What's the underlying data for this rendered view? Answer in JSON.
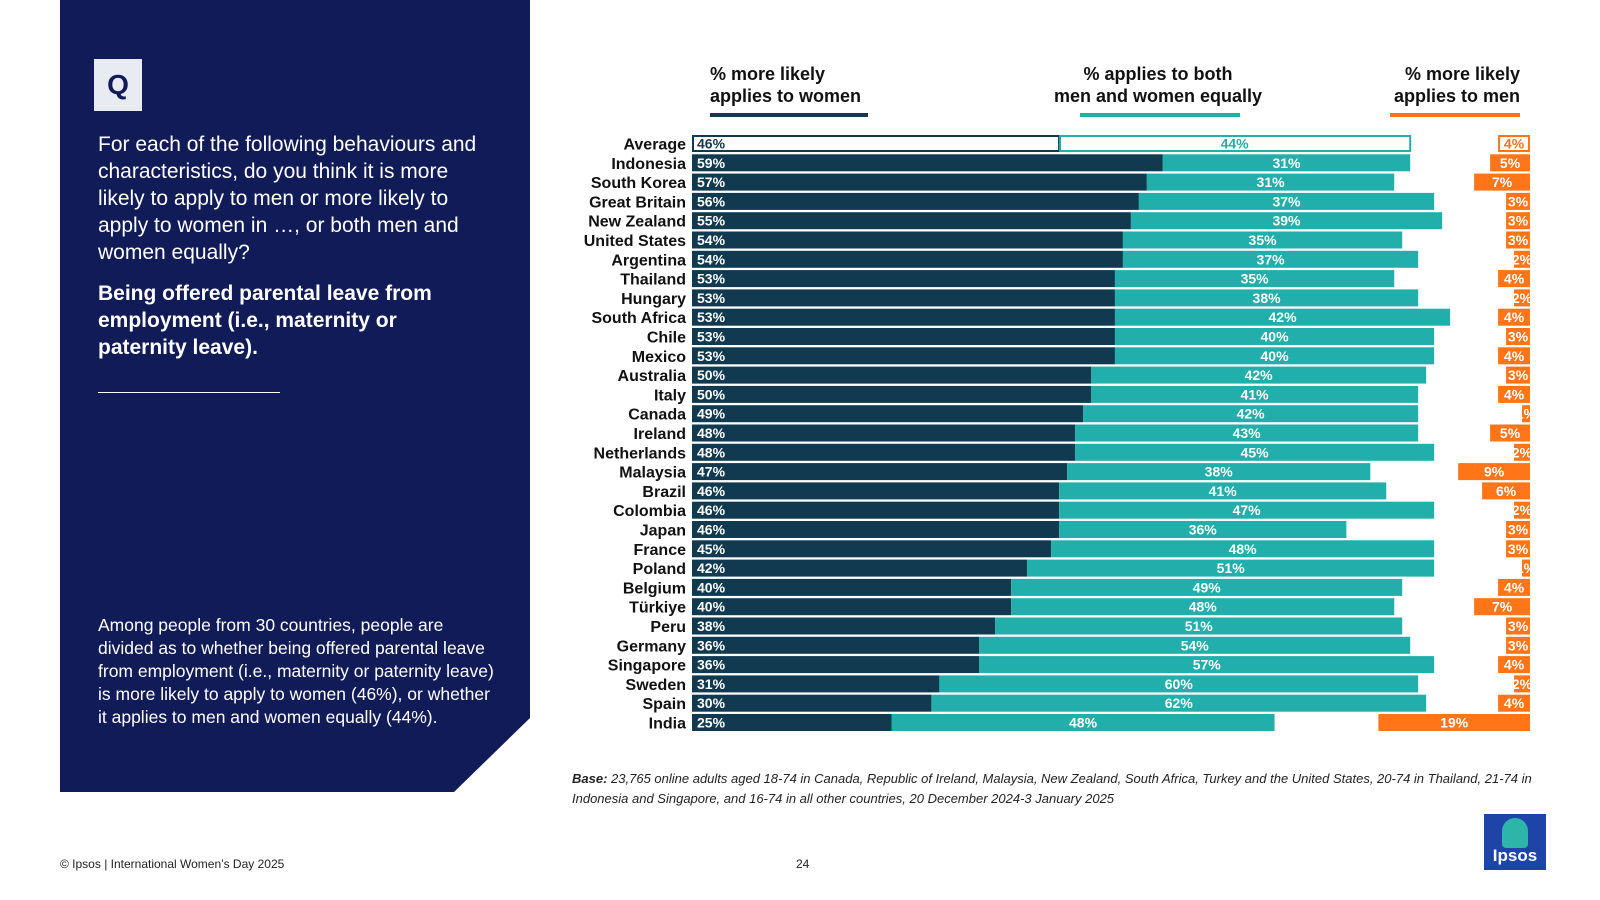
{
  "question_panel": {
    "badge": "Q",
    "question": "For each of the following behaviours and characteristics, do you think it is more likely to apply to men or more likely to apply to women in …, or both men and women equally?",
    "item": "Being offered parental leave from employment (i.e., maternity or paternity leave).",
    "summary": "Among people from 30 countries, people are divided as to whether being offered parental leave from employment (i.e., maternity or paternity leave) is more likely to apply to women (46%), or whether it applies to men and women equally (44%)."
  },
  "base_note": {
    "label": "Base:",
    "text": " 23,765 online adults aged 18-74 in Canada, Republic of Ireland, Malaysia, New Zealand, South Africa, Turkey and the United States, 20-74 in Thailand, 21-74 in Indonesia and Singapore, and 16-74 in all other countries, 20 December 2024-3 January 2025"
  },
  "footer": {
    "copyright": "© Ipsos | International Women’s Day 2025",
    "page_number": "24",
    "logo_text": "Ipsos"
  },
  "colors": {
    "women": "#113a51",
    "both": "#22aeaa",
    "men": "#ff7518",
    "navy": "#111b57"
  },
  "chart_data": {
    "type": "bar",
    "orientation": "horizontal",
    "stacked": true,
    "series": [
      {
        "name": "% more likely applies to women",
        "legend_lines": [
          "% more likely",
          "applies to women"
        ],
        "values": [
          46,
          59,
          57,
          56,
          55,
          54,
          54,
          53,
          53,
          53,
          53,
          53,
          50,
          50,
          49,
          48,
          48,
          47,
          46,
          46,
          46,
          45,
          42,
          40,
          40,
          38,
          36,
          36,
          31,
          30,
          25
        ]
      },
      {
        "name": "% applies to both men and women equally",
        "legend_lines": [
          "% applies to both",
          "men and women equally"
        ],
        "values": [
          44,
          31,
          31,
          37,
          39,
          35,
          37,
          35,
          38,
          42,
          40,
          40,
          42,
          41,
          42,
          43,
          45,
          38,
          41,
          47,
          36,
          48,
          51,
          49,
          48,
          51,
          54,
          57,
          60,
          62,
          48
        ]
      },
      {
        "name": "% more likely applies to men",
        "legend_lines": [
          "% more likely",
          "applies to men"
        ],
        "values": [
          4,
          5,
          7,
          3,
          3,
          3,
          2,
          4,
          2,
          4,
          3,
          4,
          3,
          4,
          1,
          5,
          2,
          9,
          6,
          2,
          3,
          3,
          1,
          4,
          7,
          3,
          3,
          4,
          2,
          4,
          19
        ]
      }
    ],
    "categories": [
      "Average",
      "Indonesia",
      "South Korea",
      "Great Britain",
      "New Zealand",
      "United States",
      "Argentina",
      "Thailand",
      "Hungary",
      "South Africa",
      "Chile",
      "Mexico",
      "Australia",
      "Italy",
      "Canada",
      "Ireland",
      "Netherlands",
      "Malaysia",
      "Brazil",
      "Colombia",
      "Japan",
      "France",
      "Poland",
      "Belgium",
      "Türkiye",
      "Peru",
      "Germany",
      "Singapore",
      "Sweden",
      "Spain",
      "India"
    ],
    "unit": "%",
    "xlim": [
      0,
      100
    ],
    "highlighted_category": "Average",
    "grid": false
  }
}
